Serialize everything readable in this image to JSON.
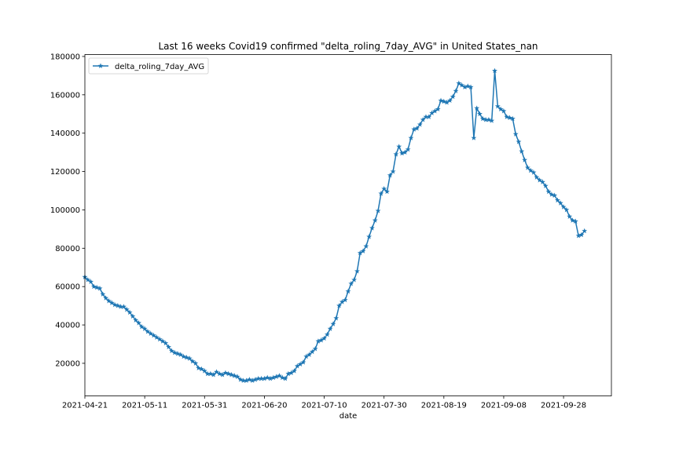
{
  "chart_data": {
    "type": "line",
    "title": "Last 16 weeks Covid19 confirmed \"delta_roling_7day_AVG\" in United States_nan",
    "xlabel": "date",
    "ylabel": "",
    "x_start": "2021-04-21",
    "x_end": "2021-10-14",
    "ylim": [
      3000,
      181000
    ],
    "x_ticks": [
      "2021-04-21",
      "2021-05-11",
      "2021-05-31",
      "2021-06-20",
      "2021-07-10",
      "2021-07-30",
      "2021-08-19",
      "2021-09-08",
      "2021-09-28"
    ],
    "y_ticks": [
      20000,
      40000,
      60000,
      80000,
      100000,
      120000,
      140000,
      160000,
      180000
    ],
    "grid": false,
    "legend_position": "upper left",
    "series": [
      {
        "name": "delta_roling_7day_AVG",
        "color": "#1f77b4",
        "marker": "star",
        "values": [
          65000,
          63500,
          62500,
          60000,
          59500,
          59000,
          56000,
          54000,
          52500,
          51500,
          50500,
          50000,
          49500,
          49500,
          48000,
          46500,
          44500,
          42500,
          41000,
          39000,
          38000,
          36500,
          35500,
          34500,
          33500,
          32500,
          31500,
          30500,
          28500,
          26500,
          25500,
          25000,
          24500,
          23500,
          23000,
          22500,
          21000,
          20000,
          17500,
          17000,
          16000,
          14500,
          14500,
          14000,
          15500,
          14500,
          14000,
          15000,
          14500,
          14000,
          13500,
          13000,
          11500,
          11000,
          11000,
          11500,
          11000,
          11500,
          12000,
          12000,
          12000,
          12500,
          12000,
          12500,
          13000,
          13500,
          12500,
          12000,
          14500,
          15000,
          16000,
          18500,
          19500,
          20500,
          23500,
          24500,
          26000,
          27500,
          31500,
          32000,
          33000,
          35000,
          38000,
          40500,
          43500,
          50000,
          52000,
          53000,
          57500,
          61500,
          63500,
          68000,
          77500,
          78500,
          81000,
          86000,
          90500,
          94500,
          99500,
          108500,
          111000,
          109500,
          118000,
          120000,
          129000,
          133000,
          129500,
          130000,
          131500,
          137500,
          142000,
          142500,
          144500,
          147000,
          148500,
          148500,
          150500,
          151500,
          152500,
          157000,
          156500,
          156000,
          157000,
          159000,
          162000,
          166000,
          165000,
          164000,
          164500,
          164000,
          137500,
          153000,
          150000,
          147500,
          147000,
          147000,
          146500,
          172500,
          154000,
          152500,
          151500,
          148500,
          148000,
          147500,
          139500,
          135500,
          130500,
          126000,
          122000,
          120500,
          119500,
          117000,
          115500,
          114500,
          112500,
          109500,
          108000,
          107500,
          105000,
          103500,
          101500,
          100000,
          96500,
          94500,
          94000,
          86500,
          87000,
          89000
        ]
      }
    ]
  }
}
